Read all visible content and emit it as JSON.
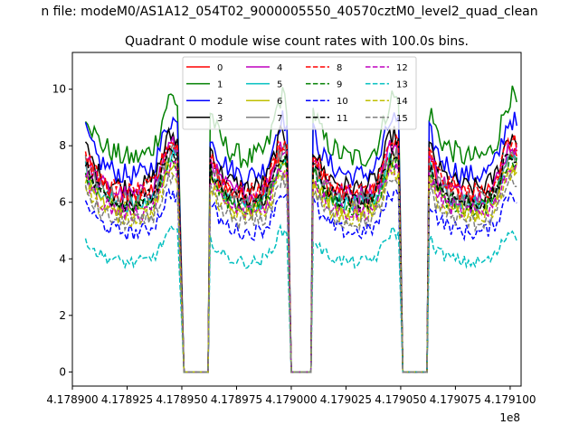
{
  "figure": {
    "suptitle": "n file: modeM0/AS1A12_054T02_9000005550_40570cztM0_level2_quad_clean"
  },
  "chart_data": {
    "type": "line",
    "title": "Quadrant 0 module wise count rates with 100.0s bins.",
    "xlabel": "",
    "ylabel": "",
    "x_offset_label": "1e8",
    "xlim": [
      417890000,
      417910500
    ],
    "ylim": [
      -0.5,
      11.3
    ],
    "x_ticks": [
      417890000,
      417892500,
      417895000,
      417897500,
      417900000,
      417902500,
      417905000,
      417907500,
      417910000
    ],
    "x_tick_labels": [
      "4.178900",
      "4.178925",
      "4.178950",
      "4.178975",
      "4.179000",
      "4.179025",
      "4.179050",
      "4.179075",
      "4.179100"
    ],
    "y_ticks": [
      0,
      2,
      4,
      6,
      8,
      10
    ],
    "y_tick_labels": [
      "0",
      "2",
      "4",
      "6",
      "8",
      "10"
    ],
    "grid": false,
    "legend_position": "top-center",
    "legend_columns": 4,
    "segments": [
      {
        "start": 417890600,
        "end": 417894800,
        "gap_start": 417895100,
        "gap_end": 417896300
      },
      {
        "start": 417896300,
        "end": 417899800,
        "gap_start": 417900000,
        "gap_end": 417901000
      },
      {
        "start": 417901000,
        "end": 417904900,
        "gap_start": 417905100,
        "gap_end": 417906300
      },
      {
        "start": 417906300,
        "end": 417910300
      }
    ],
    "series": [
      {
        "name": "0",
        "color": "#ff0000",
        "dash": "solid",
        "level": 7.0
      },
      {
        "name": "1",
        "color": "#008000",
        "dash": "solid",
        "level": 8.6
      },
      {
        "name": "2",
        "color": "#0000ff",
        "dash": "solid",
        "level": 7.9
      },
      {
        "name": "3",
        "color": "#000000",
        "dash": "solid",
        "level": 7.4
      },
      {
        "name": "4",
        "color": "#bf00bf",
        "dash": "solid",
        "level": 7.1
      },
      {
        "name": "5",
        "color": "#00bfbf",
        "dash": "solid",
        "level": 6.7
      },
      {
        "name": "6",
        "color": "#bfbf00",
        "dash": "solid",
        "level": 6.5
      },
      {
        "name": "7",
        "color": "#808080",
        "dash": "solid",
        "level": 6.9
      },
      {
        "name": "8",
        "color": "#ff0000",
        "dash": "dashed",
        "level": 7.2
      },
      {
        "name": "9",
        "color": "#008000",
        "dash": "dashed",
        "level": 6.6
      },
      {
        "name": "10",
        "color": "#0000ff",
        "dash": "dashed",
        "level": 5.6
      },
      {
        "name": "11",
        "color": "#000000",
        "dash": "dashed",
        "level": 6.8
      },
      {
        "name": "12",
        "color": "#bf00bf",
        "dash": "dashed",
        "level": 6.4
      },
      {
        "name": "13",
        "color": "#00bfbf",
        "dash": "dashed",
        "level": 4.4
      },
      {
        "name": "14",
        "color": "#bfbf00",
        "dash": "dashed",
        "level": 6.2
      },
      {
        "name": "15",
        "color": "#808080",
        "dash": "dashed",
        "level": 6.0
      }
    ]
  }
}
